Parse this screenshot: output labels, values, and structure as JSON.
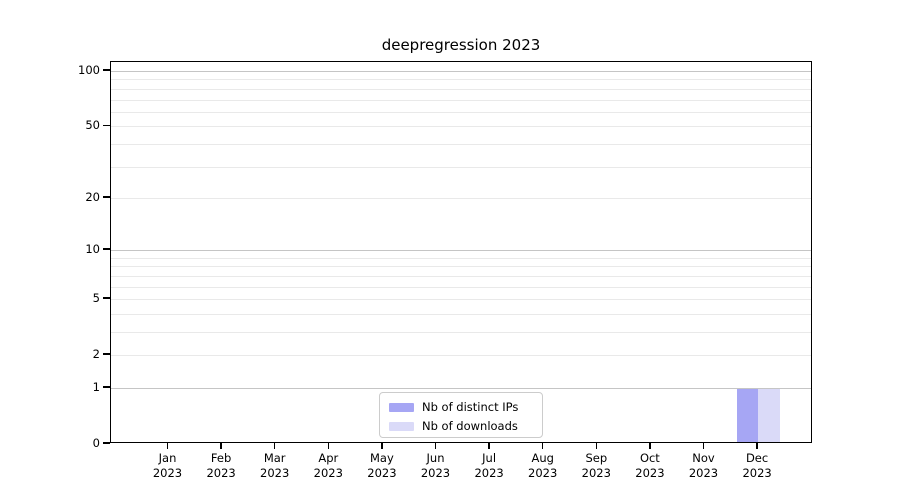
{
  "chart_data": {
    "type": "bar",
    "title": "deepregression 2023",
    "categories": [
      "Jan 2023",
      "Feb 2023",
      "Mar 2023",
      "Apr 2023",
      "May 2023",
      "Jun 2023",
      "Jul 2023",
      "Aug 2023",
      "Sep 2023",
      "Oct 2023",
      "Nov 2023",
      "Dec 2023"
    ],
    "series": [
      {
        "name": "Nb of distinct IPs",
        "color": "#a6a6f4",
        "values": [
          0,
          0,
          0,
          0,
          0,
          0,
          0,
          0,
          0,
          0,
          0,
          1
        ]
      },
      {
        "name": "Nb of downloads",
        "color": "#dadaf8",
        "values": [
          0,
          0,
          0,
          0,
          0,
          0,
          0,
          0,
          0,
          0,
          0,
          1
        ]
      }
    ],
    "xlabel": "",
    "ylabel": "",
    "y_scale": "log1p",
    "ylim": [
      0,
      112
    ],
    "y_ticks": [
      100,
      50,
      20,
      10,
      5,
      2,
      1,
      0
    ],
    "y_major_gridlines": [
      1,
      10,
      100
    ],
    "y_minor_gridlines": [
      2,
      3,
      4,
      5,
      6,
      7,
      8,
      9,
      20,
      30,
      40,
      50,
      60,
      70,
      80,
      90
    ],
    "grid": "horizontal",
    "legend_position": "lower center",
    "colors": {
      "major_grid": "#c5c5c5",
      "minor_grid": "#e9e9e9",
      "spine": "#000000",
      "background": "#ffffff"
    }
  }
}
